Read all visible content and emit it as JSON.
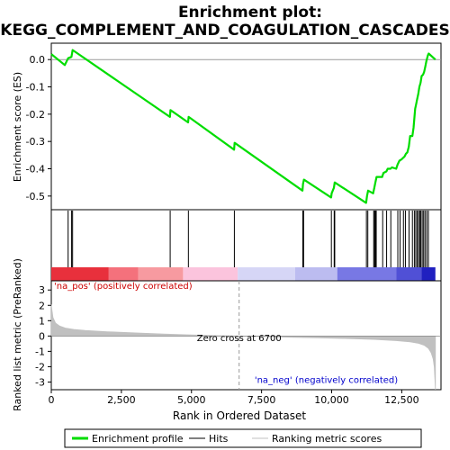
{
  "chart_data": {
    "type": "line",
    "title_line1": "Enrichment plot:",
    "title_line2": "KEGG_COMPLEMENT_AND_COAGULATION_CASCADES",
    "es_panel": {
      "ylabel": "Enrichment score (ES)",
      "ylim": [
        -0.55,
        0.06
      ],
      "yticks": [
        0.0,
        -0.1,
        -0.2,
        -0.3,
        -0.4,
        -0.5
      ],
      "ytick_labels": [
        "0.0",
        "-0.1",
        "-0.2",
        "-0.3",
        "-0.4",
        "-0.5"
      ],
      "zero_line": 0.0,
      "series": [
        {
          "name": "Enrichment profile",
          "color": "#00dd00",
          "points": [
            [
              0,
              0.02
            ],
            [
              480,
              -0.02
            ],
            [
              600,
              0.005
            ],
            [
              720,
              0.01
            ],
            [
              760,
              0.035
            ],
            [
              4230,
              -0.21
            ],
            [
              4250,
              -0.185
            ],
            [
              4880,
              -0.23
            ],
            [
              4900,
              -0.21
            ],
            [
              6520,
              -0.33
            ],
            [
              6540,
              -0.305
            ],
            [
              8960,
              -0.48
            ],
            [
              8980,
              -0.455
            ],
            [
              9010,
              -0.44
            ],
            [
              9980,
              -0.505
            ],
            [
              10000,
              -0.49
            ],
            [
              10080,
              -0.47
            ],
            [
              10110,
              -0.45
            ],
            [
              11230,
              -0.525
            ],
            [
              11260,
              -0.5
            ],
            [
              11300,
              -0.48
            ],
            [
              11480,
              -0.49
            ],
            [
              11520,
              -0.47
            ],
            [
              11560,
              -0.45
            ],
            [
              11600,
              -0.43
            ],
            [
              11800,
              -0.43
            ],
            [
              11850,
              -0.415
            ],
            [
              11950,
              -0.41
            ],
            [
              12000,
              -0.4
            ],
            [
              12100,
              -0.4
            ],
            [
              12150,
              -0.395
            ],
            [
              12300,
              -0.4
            ],
            [
              12350,
              -0.385
            ],
            [
              12420,
              -0.37
            ],
            [
              12500,
              -0.365
            ],
            [
              12550,
              -0.36
            ],
            [
              12600,
              -0.355
            ],
            [
              12650,
              -0.345
            ],
            [
              12700,
              -0.34
            ],
            [
              12750,
              -0.32
            ],
            [
              12800,
              -0.28
            ],
            [
              12880,
              -0.28
            ],
            [
              12920,
              -0.25
            ],
            [
              12950,
              -0.215
            ],
            [
              12980,
              -0.18
            ],
            [
              13010,
              -0.165
            ],
            [
              13050,
              -0.145
            ],
            [
              13090,
              -0.125
            ],
            [
              13130,
              -0.1
            ],
            [
              13170,
              -0.085
            ],
            [
              13210,
              -0.06
            ],
            [
              13260,
              -0.055
            ],
            [
              13300,
              -0.045
            ],
            [
              13340,
              -0.025
            ],
            [
              13380,
              -0.005
            ],
            [
              13430,
              0.015
            ],
            [
              13460,
              0.022
            ],
            [
              13700,
              0.0
            ]
          ]
        }
      ]
    },
    "hits_panel": {
      "hit_positions": [
        600,
        720,
        760,
        4240,
        4890,
        6530,
        8970,
        9000,
        9990,
        10090,
        10110,
        11240,
        11290,
        11500,
        11530,
        11560,
        11590,
        11820,
        11960,
        12110,
        12360,
        12440,
        12560,
        12630,
        12760,
        12880,
        12950,
        13000,
        13050,
        13100,
        13140,
        13180,
        13230,
        13280,
        13330,
        13390,
        13450
      ],
      "hit_color": "#000000",
      "color_bar": [
        {
          "from": 0,
          "to": 2050,
          "color": "#e8303c"
        },
        {
          "from": 2050,
          "to": 3100,
          "color": "#f4717c"
        },
        {
          "from": 3100,
          "to": 4700,
          "color": "#f79aa0"
        },
        {
          "from": 4700,
          "to": 6650,
          "color": "#fbc4dd"
        },
        {
          "from": 6650,
          "to": 8700,
          "color": "#d6d6f6"
        },
        {
          "from": 8700,
          "to": 10200,
          "color": "#bcbcf0"
        },
        {
          "from": 10200,
          "to": 12300,
          "color": "#7878e4"
        },
        {
          "from": 12300,
          "to": 13200,
          "color": "#5050d6"
        },
        {
          "from": 13200,
          "to": 13700,
          "color": "#2020c0"
        }
      ]
    },
    "metric_panel": {
      "ylabel": "Ranked list metric (PreRanked)",
      "xlabel": "Rank in Ordered Dataset",
      "ylim": [
        -3.5,
        3.6
      ],
      "yticks": [
        3,
        2,
        1,
        0,
        -1,
        -2,
        -3
      ],
      "ytick_labels": [
        "3",
        "2",
        "1",
        "0",
        "-1",
        "-2",
        "-3"
      ],
      "xlim": [
        0,
        13900
      ],
      "xticks": [
        0,
        2500,
        5000,
        7500,
        10000,
        12500
      ],
      "xtick_labels": [
        "0",
        "2,500",
        "5,000",
        "7,500",
        "10,000",
        "12,500"
      ],
      "zero_cross_rank": 6700,
      "zero_cross_label": "Zero cross at 6700",
      "pos_label": "'na_pos' (positively correlated)",
      "neg_label": "'na_neg' (negatively correlated)",
      "fill_color": "#c0c0c0",
      "curve": [
        [
          0,
          2.05
        ],
        [
          20,
          1.75
        ],
        [
          60,
          1.2
        ],
        [
          150,
          0.85
        ],
        [
          300,
          0.65
        ],
        [
          500,
          0.52
        ],
        [
          800,
          0.43
        ],
        [
          1200,
          0.36
        ],
        [
          2000,
          0.28
        ],
        [
          3000,
          0.2
        ],
        [
          4000,
          0.13
        ],
        [
          5000,
          0.07
        ],
        [
          6000,
          0.02
        ],
        [
          6700,
          0.0
        ],
        [
          7500,
          -0.03
        ],
        [
          8500,
          -0.08
        ],
        [
          9500,
          -0.12
        ],
        [
          10500,
          -0.16
        ],
        [
          11500,
          -0.22
        ],
        [
          12300,
          -0.3
        ],
        [
          12800,
          -0.38
        ],
        [
          13100,
          -0.48
        ],
        [
          13300,
          -0.6
        ],
        [
          13450,
          -0.8
        ],
        [
          13550,
          -1.1
        ],
        [
          13620,
          -1.5
        ],
        [
          13660,
          -2.0
        ],
        [
          13690,
          -3.1
        ],
        [
          13700,
          -3.5
        ]
      ]
    },
    "legend": {
      "entries": [
        {
          "label": "Enrichment profile",
          "color": "#00dd00",
          "kind": "thick-line"
        },
        {
          "label": "Hits",
          "color": "#000000",
          "kind": "line"
        },
        {
          "label": "Ranking metric scores",
          "color": "#c0c0c0",
          "kind": "line"
        }
      ]
    },
    "grid": false
  }
}
